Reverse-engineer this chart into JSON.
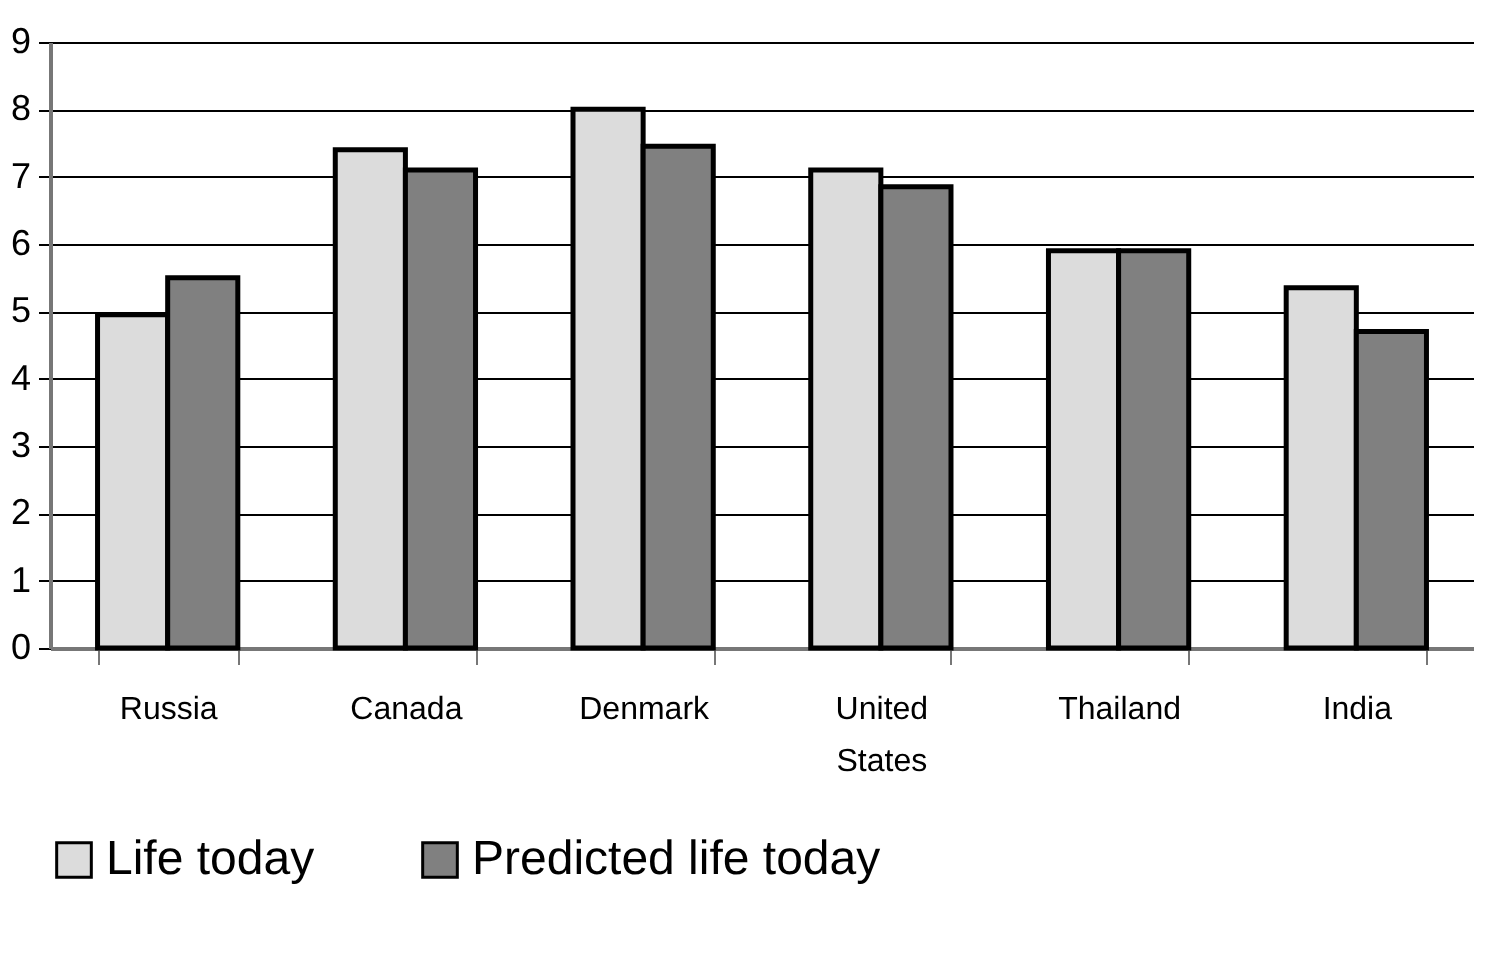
{
  "chart_data": {
    "type": "bar",
    "categories": [
      "Russia",
      "Canada",
      "Denmark",
      "United States",
      "Thailand",
      "India"
    ],
    "series": [
      {
        "name": "Life today",
        "color": "#dcdcdc",
        "values": [
          4.95,
          7.4,
          8.0,
          7.1,
          5.9,
          5.35
        ]
      },
      {
        "name": "Predicted life today",
        "color": "#808080",
        "values": [
          5.5,
          7.1,
          7.45,
          6.85,
          5.9,
          4.7
        ]
      }
    ],
    "ylim": [
      0,
      9
    ],
    "yticks": [
      0,
      1,
      2,
      3,
      4,
      5,
      6,
      7,
      8,
      9
    ],
    "grid": "y",
    "legend": "bottom"
  }
}
